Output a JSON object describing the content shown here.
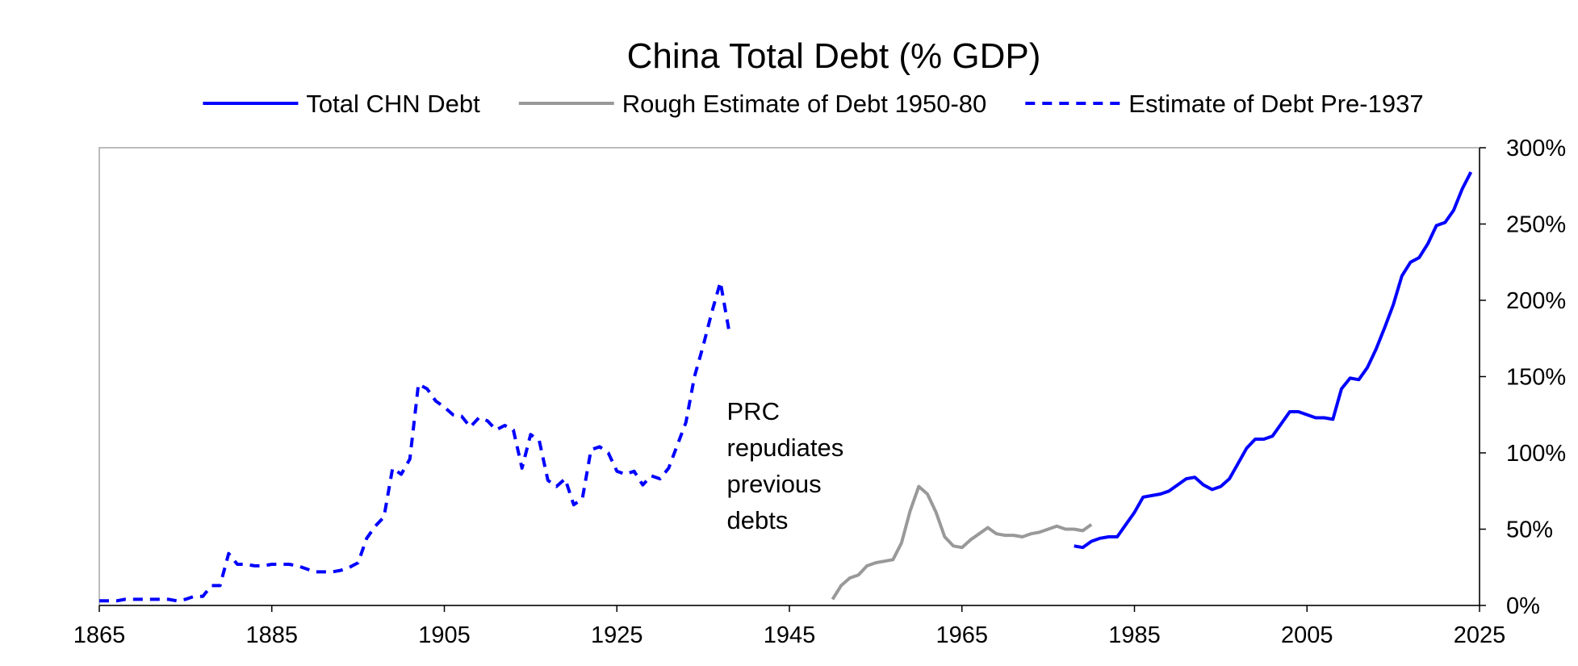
{
  "chart_data": {
    "type": "line",
    "title": "China Total Debt (% GDP)",
    "xlabel": "",
    "ylabel": "",
    "xlim": [
      1865,
      2025
    ],
    "ylim": [
      0,
      300
    ],
    "x_ticks": [
      "1865",
      "1885",
      "1905",
      "1925",
      "1945",
      "1965",
      "1985",
      "2005",
      "2025"
    ],
    "y_ticks": [
      "0%",
      "50%",
      "100%",
      "150%",
      "200%",
      "250%",
      "300%"
    ],
    "y_axis_side": "right",
    "grid": false,
    "legend_position": "top",
    "colors": {
      "blue": "#0000ff",
      "gray": "#999999",
      "frame": "#a6a6a6"
    },
    "annotation": {
      "lines": [
        "PRC",
        "repudiates",
        "previous",
        "debts"
      ],
      "x": 1937,
      "y": 127
    },
    "series": [
      {
        "name": "Total CHN Debt",
        "style": "solid",
        "color": "#0000ff",
        "x": [
          1978,
          1979,
          1980,
          1981,
          1982,
          1983,
          1984,
          1985,
          1986,
          1987,
          1988,
          1989,
          1990,
          1991,
          1992,
          1993,
          1994,
          1995,
          1996,
          1997,
          1998,
          1999,
          2000,
          2001,
          2002,
          2003,
          2004,
          2005,
          2006,
          2007,
          2008,
          2009,
          2010,
          2011,
          2012,
          2013,
          2014,
          2015,
          2016,
          2017,
          2018,
          2019,
          2020,
          2021,
          2022,
          2023,
          2024
        ],
        "y": [
          39,
          38,
          42,
          44,
          45,
          45,
          53,
          61,
          71,
          72,
          73,
          75,
          79,
          83,
          84,
          79,
          76,
          78,
          83,
          93,
          103,
          109,
          109,
          111,
          119,
          127,
          127,
          125,
          123,
          123,
          122,
          142,
          149,
          148,
          156,
          168,
          182,
          197,
          216,
          225,
          228,
          237,
          249,
          251,
          259,
          273,
          284
        ]
      },
      {
        "name": "Rough Estimate of Debt 1950-80",
        "style": "solid",
        "color": "#999999",
        "x": [
          1950,
          1951,
          1952,
          1953,
          1954,
          1955,
          1956,
          1957,
          1958,
          1959,
          1960,
          1961,
          1962,
          1963,
          1964,
          1965,
          1966,
          1967,
          1968,
          1969,
          1970,
          1971,
          1972,
          1973,
          1974,
          1975,
          1976,
          1977,
          1978,
          1979,
          1980
        ],
        "y": [
          4,
          13,
          18,
          20,
          26,
          28,
          29,
          30,
          41,
          62,
          78,
          73,
          61,
          45,
          39,
          38,
          43,
          47,
          51,
          47,
          46,
          46,
          45,
          47,
          48,
          50,
          52,
          50,
          50,
          49,
          53
        ]
      },
      {
        "name": "Estimate of Debt Pre-1937",
        "style": "dashed",
        "color": "#0000ff",
        "x": [
          1865,
          1866,
          1867,
          1868,
          1869,
          1870,
          1871,
          1872,
          1873,
          1874,
          1875,
          1876,
          1877,
          1878,
          1879,
          1880,
          1881,
          1882,
          1883,
          1884,
          1885,
          1886,
          1887,
          1888,
          1889,
          1890,
          1891,
          1892,
          1893,
          1894,
          1895,
          1896,
          1897,
          1898,
          1899,
          1900,
          1901,
          1902,
          1903,
          1904,
          1905,
          1906,
          1907,
          1908,
          1909,
          1910,
          1911,
          1912,
          1913,
          1914,
          1915,
          1916,
          1917,
          1918,
          1919,
          1920,
          1921,
          1922,
          1923,
          1924,
          1925,
          1926,
          1927,
          1928,
          1929,
          1930,
          1931,
          1932,
          1933,
          1934,
          1935,
          1936,
          1937,
          1938
        ],
        "y": [
          3,
          3,
          3,
          4,
          4,
          4,
          4,
          4,
          4,
          3,
          4,
          6,
          6,
          13,
          13,
          34,
          27,
          27,
          26,
          26,
          27,
          27,
          27,
          26,
          24,
          22,
          22,
          22,
          23,
          25,
          28,
          44,
          52,
          58,
          90,
          86,
          96,
          145,
          142,
          134,
          130,
          125,
          124,
          117,
          123,
          121,
          115,
          118,
          115,
          90,
          112,
          108,
          82,
          78,
          83,
          66,
          70,
          102,
          104,
          100,
          88,
          86,
          88,
          79,
          85,
          83,
          90,
          105,
          120,
          150,
          170,
          192,
          212,
          180
        ]
      }
    ]
  }
}
